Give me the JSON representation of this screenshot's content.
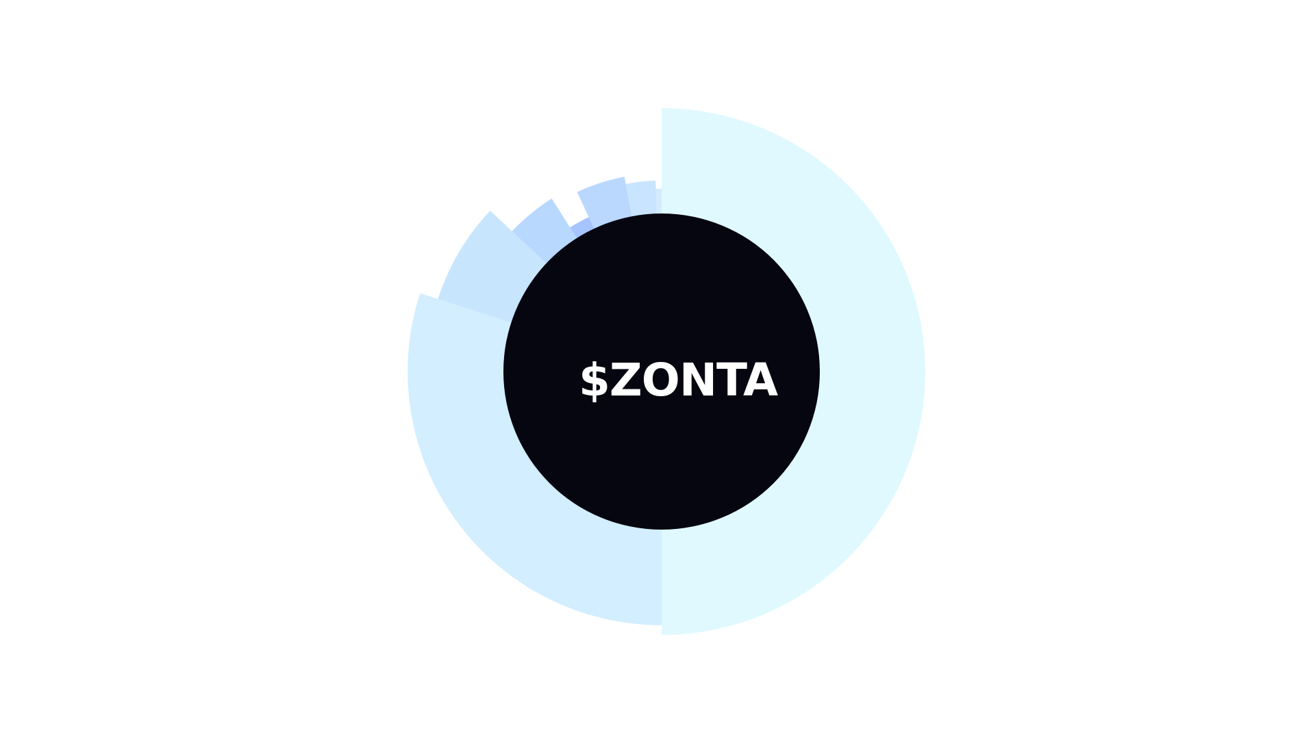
{
  "chart_data": {
    "type": "pie",
    "title": "",
    "center_label": "$ZONTA",
    "center_color": "#05060f",
    "background": "#ffffff",
    "slices": [
      {
        "value": 50.0,
        "radius_rel": 1.0,
        "color": "#e0f9ff"
      },
      {
        "value": 30.0,
        "radius_rel": 0.963,
        "color": "#d2eeff"
      },
      {
        "value": 7.0,
        "radius_rel": 0.892,
        "color": "#c8e5fe"
      },
      {
        "value": 4.0,
        "radius_rel": 0.778,
        "color": "#b8d8fe"
      },
      {
        "value": 2.0,
        "radius_rel": 0.648,
        "color": "#a6c4fe"
      },
      {
        "value": 4.0,
        "radius_rel": 0.753,
        "color": "#bad8fe"
      },
      {
        "value": 2.5,
        "radius_rel": 0.725,
        "color": "#c9e4fe"
      },
      {
        "value": 0.5,
        "radius_rel": 0.694,
        "color": "#d2ebff"
      }
    ]
  }
}
